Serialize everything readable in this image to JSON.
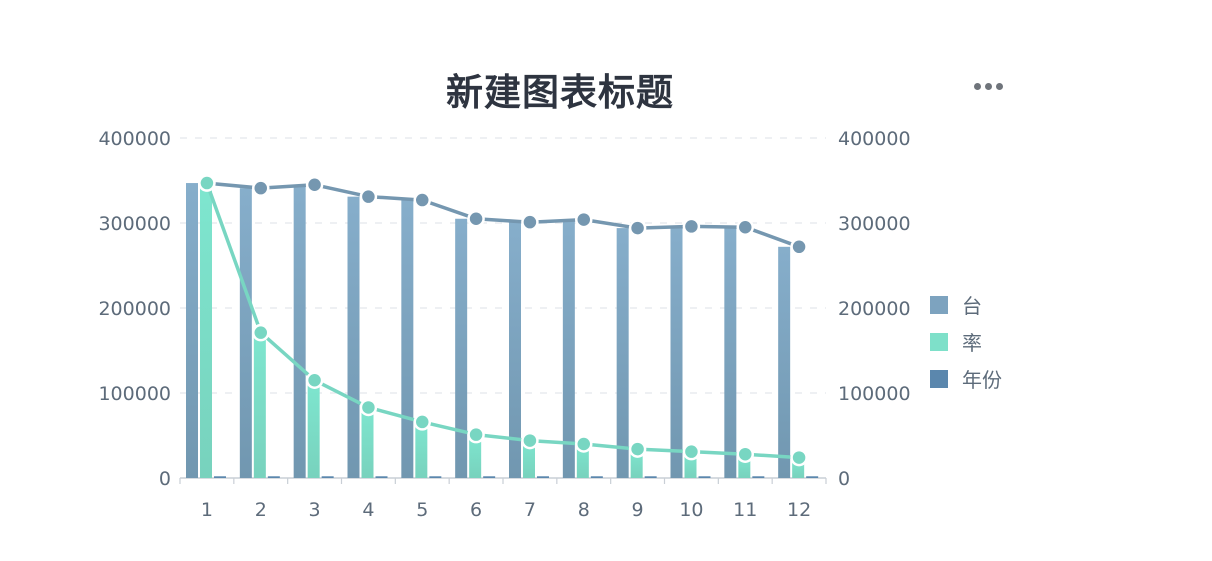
{
  "title": "新建图表标题",
  "more_icon": "ellipsis-icon",
  "colors": {
    "bar_tai_top": "#86aecb",
    "bar_tai_bottom": "#7197b0",
    "bar_lv_top": "#7ee6cf",
    "bar_lv_bottom": "#78d2bd",
    "bar_year": "#5b87ad",
    "line_tai": "#7597b0",
    "line_lv": "#78d6c2",
    "axis": "#c9cfd6",
    "grid": "#e4e8ec",
    "tick_text": "#5d6b7a"
  },
  "legend": [
    {
      "label": "台",
      "color": "#7da3bf"
    },
    {
      "label": "率",
      "color": "#7ee0c9"
    },
    {
      "label": "年份",
      "color": "#5b87ad"
    }
  ],
  "chart_data": {
    "type": "bar",
    "title": "新建图表标题",
    "categories": [
      "1",
      "2",
      "3",
      "4",
      "5",
      "6",
      "7",
      "8",
      "9",
      "10",
      "11",
      "12"
    ],
    "series": [
      {
        "name": "台",
        "type": "bar+line",
        "values": [
          347000,
          341000,
          345000,
          331000,
          327000,
          305000,
          301000,
          304000,
          294000,
          296000,
          295000,
          272000
        ]
      },
      {
        "name": "率",
        "type": "bar+line",
        "values": [
          347000,
          171000,
          115000,
          83000,
          66000,
          51000,
          44000,
          40000,
          34000,
          31000,
          28000,
          24000
        ]
      },
      {
        "name": "年份",
        "type": "bar",
        "values": [
          2020,
          2020,
          2020,
          2020,
          2020,
          2020,
          2020,
          2020,
          2020,
          2020,
          2020,
          2020
        ]
      }
    ],
    "y_left": {
      "min": 0,
      "max": 400000,
      "ticks": [
        "0",
        "100000",
        "200000",
        "300000",
        "400000"
      ]
    },
    "y_right": {
      "min": 0,
      "max": 400000,
      "ticks": [
        "0",
        "100000",
        "200000",
        "300000",
        "400000"
      ]
    },
    "grid": true,
    "legend_position": "right"
  }
}
